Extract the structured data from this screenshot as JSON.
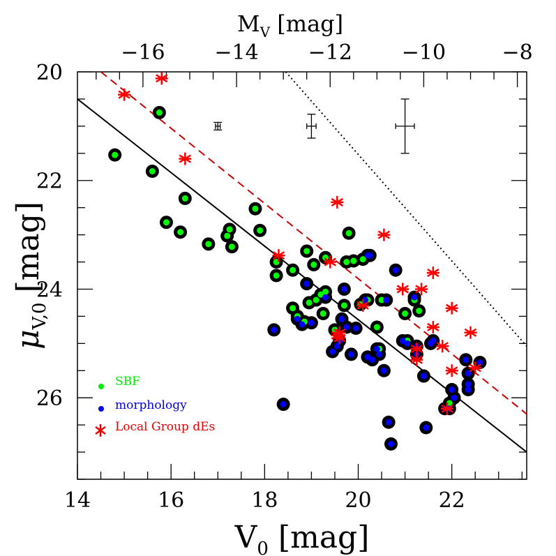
{
  "chart_data": {
    "type": "scatter",
    "title": "",
    "xlabel": "V0 [mag]",
    "ylabel": "μV,0 [mag]",
    "top_xlabel": "MV [mag]",
    "xlim": [
      14,
      23.6
    ],
    "ylim": [
      27.5,
      20
    ],
    "distance_modulus": 31.4,
    "x_ticks": [
      14,
      16,
      18,
      20,
      22
    ],
    "y_ticks": [
      20,
      22,
      24,
      26
    ],
    "top_ticks": [
      -16,
      -14,
      -12,
      -10,
      -8
    ],
    "grid": false,
    "legend_position": "bottom-left",
    "legend": [
      {
        "label": "SBF",
        "color": "#00ee00",
        "marker": "dot"
      },
      {
        "label": "morphology",
        "color": "#0000ee",
        "marker": "dot"
      },
      {
        "label": "Local Group dEs",
        "color": "#ee0000",
        "marker": "asterisk"
      }
    ],
    "series": [
      {
        "name": "SBF",
        "color": "#00ff00",
        "points": [
          [
            14.8,
            21.53
          ],
          [
            15.6,
            21.83
          ],
          [
            15.75,
            20.75
          ],
          [
            15.9,
            22.77
          ],
          [
            16.2,
            22.95
          ],
          [
            16.3,
            22.33
          ],
          [
            16.8,
            23.17
          ],
          [
            17.2,
            23.02
          ],
          [
            17.25,
            22.9
          ],
          [
            17.3,
            23.22
          ],
          [
            17.8,
            22.52
          ],
          [
            17.9,
            22.92
          ],
          [
            18.25,
            23.5
          ],
          [
            18.25,
            23.75
          ],
          [
            18.6,
            24.35
          ],
          [
            18.6,
            23.65
          ],
          [
            18.7,
            24.5
          ],
          [
            18.85,
            24.6
          ],
          [
            18.9,
            23.3
          ],
          [
            18.95,
            24.25
          ],
          [
            19.05,
            23.55
          ],
          [
            19.1,
            24.2
          ],
          [
            19.2,
            24.1
          ],
          [
            19.25,
            24.45
          ],
          [
            19.3,
            23.42
          ],
          [
            19.3,
            24.05
          ],
          [
            19.5,
            24.75
          ],
          [
            19.7,
            24.3
          ],
          [
            19.75,
            23.5
          ],
          [
            19.8,
            22.97
          ],
          [
            19.9,
            23.48
          ],
          [
            20.05,
            24.28
          ],
          [
            20.1,
            23.45
          ],
          [
            20.2,
            24.2
          ],
          [
            20.4,
            24.7
          ],
          [
            20.45,
            25.1
          ],
          [
            20.5,
            24.2
          ],
          [
            21.0,
            24.45
          ],
          [
            21.05,
            24.95
          ],
          [
            21.3,
            24.4
          ],
          [
            21.2,
            24.2
          ],
          [
            21.95,
            26.1
          ]
        ]
      },
      {
        "name": "morphology",
        "color": "#0000ff",
        "points": [
          [
            18.2,
            24.75
          ],
          [
            18.4,
            26.12
          ],
          [
            18.7,
            24.55
          ],
          [
            18.8,
            24.65
          ],
          [
            18.9,
            23.9
          ],
          [
            19.0,
            24.62
          ],
          [
            19.3,
            24.15
          ],
          [
            19.45,
            25.15
          ],
          [
            19.55,
            25.05
          ],
          [
            19.6,
            24.95
          ],
          [
            19.65,
            24.55
          ],
          [
            19.7,
            24.0
          ],
          [
            19.75,
            24.7
          ],
          [
            19.85,
            25.2
          ],
          [
            19.95,
            24.72
          ],
          [
            20.15,
            24.2
          ],
          [
            20.2,
            23.38
          ],
          [
            20.25,
            23.38
          ],
          [
            20.2,
            25.25
          ],
          [
            20.3,
            25.3
          ],
          [
            20.4,
            25.1
          ],
          [
            20.45,
            25.2
          ],
          [
            20.55,
            25.5
          ],
          [
            20.6,
            24.2
          ],
          [
            20.65,
            26.45
          ],
          [
            20.7,
            26.85
          ],
          [
            20.8,
            23.65
          ],
          [
            20.95,
            24.95
          ],
          [
            21.05,
            25.0
          ],
          [
            21.25,
            25.2
          ],
          [
            21.2,
            24.15
          ],
          [
            21.25,
            25.05
          ],
          [
            21.4,
            25.6
          ],
          [
            21.45,
            26.55
          ],
          [
            21.55,
            25.0
          ],
          [
            21.6,
            24.95
          ],
          [
            21.85,
            26.2
          ],
          [
            22.0,
            25.85
          ],
          [
            22.05,
            26.0
          ],
          [
            22.3,
            25.3
          ],
          [
            22.35,
            25.55
          ],
          [
            22.35,
            25.75
          ],
          [
            22.35,
            25.85
          ],
          [
            22.6,
            25.35
          ],
          [
            21.95,
            26.2
          ]
        ]
      },
      {
        "name": "Local Group dEs",
        "color": "#ff0000",
        "points": [
          [
            15.0,
            20.42
          ],
          [
            15.8,
            20.12
          ],
          [
            16.3,
            21.6
          ],
          [
            18.3,
            23.38
          ],
          [
            19.4,
            23.5
          ],
          [
            19.55,
            22.4
          ],
          [
            19.6,
            24.8
          ],
          [
            19.6,
            24.9
          ],
          [
            20.1,
            24.3
          ],
          [
            20.55,
            23.0
          ],
          [
            20.95,
            24.0
          ],
          [
            21.25,
            25.3
          ],
          [
            21.35,
            24.0
          ],
          [
            21.6,
            23.7
          ],
          [
            21.6,
            24.7
          ],
          [
            21.8,
            25.05
          ],
          [
            21.9,
            26.2
          ],
          [
            22.0,
            24.35
          ],
          [
            22.0,
            25.5
          ],
          [
            22.4,
            24.8
          ],
          [
            22.5,
            25.45
          ],
          [
            21.25,
            25.1
          ],
          [
            19.55,
            24.85
          ]
        ]
      }
    ],
    "lines": [
      {
        "name": "fit-solid",
        "style": "solid",
        "color": "#000000",
        "points": [
          [
            14.0,
            20.5
          ],
          [
            23.6,
            27.0
          ]
        ]
      },
      {
        "name": "fit-dashed",
        "style": "dashed",
        "color": "#cc0000",
        "points": [
          [
            14.5,
            20.0
          ],
          [
            23.6,
            26.3
          ]
        ]
      },
      {
        "name": "limit-dotted",
        "style": "dotted",
        "color": "#000000",
        "points": [
          [
            18.45,
            20.0
          ],
          [
            23.6,
            25.05
          ]
        ]
      }
    ],
    "error_bars": [
      {
        "x": 17.0,
        "y": 21.0,
        "xerr": 0.05,
        "yerr": 0.07
      },
      {
        "x": 19.0,
        "y": 21.0,
        "xerr": 0.1,
        "yerr": 0.22
      },
      {
        "x": 21.0,
        "y": 21.0,
        "xerr": 0.2,
        "yerr": 0.5
      }
    ]
  }
}
